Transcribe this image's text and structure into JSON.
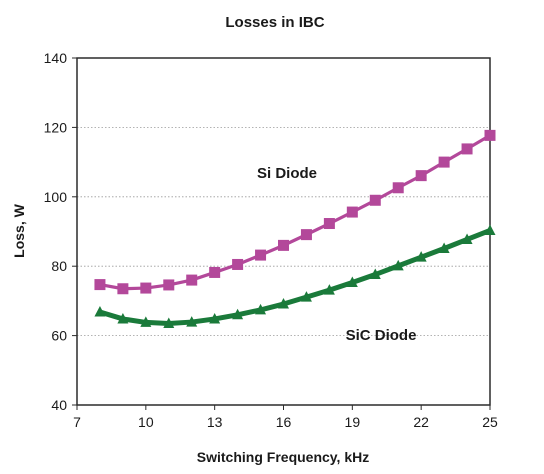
{
  "chart_data": {
    "type": "line",
    "title": "Losses in IBC",
    "xlabel": "Switching Frequency, kHz",
    "ylabel": "Loss, W",
    "xlim": [
      7,
      25
    ],
    "ylim": [
      40,
      140
    ],
    "x_ticks": [
      7,
      10,
      13,
      16,
      19,
      22,
      25
    ],
    "y_ticks": [
      40,
      60,
      80,
      100,
      120,
      140
    ],
    "grid": "horizontal dotted",
    "legend": "none; series labeled inline on the plot",
    "series": [
      {
        "name": "Si Diode",
        "color": "#b3489a",
        "marker": "square",
        "x": [
          8,
          9,
          10,
          11,
          12,
          13,
          14,
          15,
          16,
          17,
          18,
          19,
          20,
          21,
          22,
          23,
          24,
          25
        ],
        "values": [
          74.7,
          73.5,
          73.7,
          74.6,
          76.0,
          78.2,
          80.5,
          83.2,
          86.0,
          89.1,
          92.3,
          95.6,
          99.0,
          102.6,
          106.1,
          110.0,
          113.8,
          117.7
        ]
      },
      {
        "name": "SiC Diode",
        "color": "#1a7a3a",
        "marker": "triangle",
        "x": [
          8,
          9,
          10,
          11,
          12,
          13,
          14,
          15,
          16,
          17,
          18,
          19,
          20,
          21,
          22,
          23,
          24,
          25
        ],
        "values": [
          66.8,
          64.8,
          63.8,
          63.5,
          63.9,
          64.8,
          66.0,
          67.4,
          69.1,
          71.1,
          73.1,
          75.3,
          77.6,
          80.1,
          82.6,
          85.1,
          87.7,
          90.3
        ]
      }
    ]
  }
}
